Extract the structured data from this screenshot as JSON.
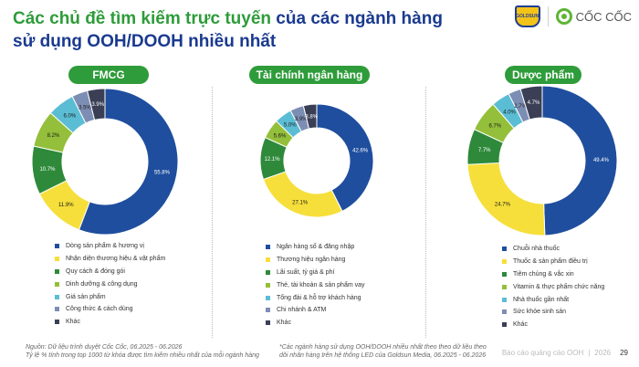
{
  "header": {
    "title_part1": "Các chủ đề tìm kiếm trực tuyến",
    "title_part2": " của các ngành hàng",
    "title_line2": "sử dụng OOH/DOOH nhiều nhất",
    "goldsun_logo_text": "GOLDSUN",
    "coccoc_logo_text": "CỐC CỐC"
  },
  "colors": [
    "#1f4e9e",
    "#f6df3a",
    "#2e8a3a",
    "#94bf3a",
    "#5bbdd4",
    "#7d8eb4",
    "#3a3f55"
  ],
  "chart_data": [
    {
      "type": "pie",
      "title": "FMCG",
      "categories": [
        "Dòng sản phẩm & hương vị",
        "Nhận diện thương hiệu & vật phẩm",
        "Quy cách & đóng gói",
        "Dinh dưỡng & công dụng",
        "Giá sản phẩm",
        "Công thức & cách dùng",
        "Khác"
      ],
      "values": [
        55.8,
        11.9,
        10.7,
        8.2,
        6.0,
        3.5,
        3.9
      ],
      "labels": [
        "55.8%",
        "11.9%",
        "10.7%",
        "8.2%",
        "6.0%",
        "3.5%",
        "3.9%"
      ]
    },
    {
      "type": "pie",
      "title": "Tài chính ngân hàng",
      "categories": [
        "Ngân hàng số & đăng nhập",
        "Thương hiệu ngân hàng",
        "Lãi suất, tỷ giá & phí",
        "Thẻ, tài khoản & sản phẩm vay",
        "Tổng đài & hỗ trợ khách hàng",
        "Chi nhánh & ATM",
        "Khác"
      ],
      "values": [
        42.6,
        27.1,
        12.1,
        5.6,
        5.0,
        3.9,
        3.8
      ],
      "labels": [
        "42.6%",
        "27.1%",
        "12.1%",
        "5.6%",
        "5.0%",
        "3.9%",
        "3.8%"
      ]
    },
    {
      "type": "pie",
      "title": "Dược phẩm",
      "categories": [
        "Chuỗi nhà thuốc",
        "Thuốc & sản phẩm điều trị",
        "Tiêm chủng & vắc xin",
        "Vitamin & thực phẩm chức năng",
        "Nhà thuốc gần nhất",
        "Sức khỏe sinh sản",
        "Khác"
      ],
      "values": [
        49.4,
        24.7,
        7.7,
        6.7,
        4.0,
        2.7,
        4.7
      ],
      "labels": [
        "49.4%",
        "24.7%",
        "7.7%",
        "6.7%",
        "4.0%",
        "2.7%",
        "4.7%"
      ]
    }
  ],
  "footer": {
    "source_line1": "Nguồn: Dữ liệu trình duyệt Cốc Cốc, 06.2025 - 06.2026",
    "source_line2": "Tỷ lệ % tính trong top 1000 từ khóa được tìm kiếm nhiều nhất của mỗi ngành hàng",
    "note_line1": "*Các ngành hàng sử dụng OOH/DOOH nhiều nhất theo theo dữ liệu theo",
    "note_line2": "dõi nhãn hàng trên hệ thống LED của Goldsun Media, 06.2025 - 06.2026",
    "report_name": "Báo cáo quảng cáo OOH",
    "year": "2026",
    "page_number": "29"
  }
}
